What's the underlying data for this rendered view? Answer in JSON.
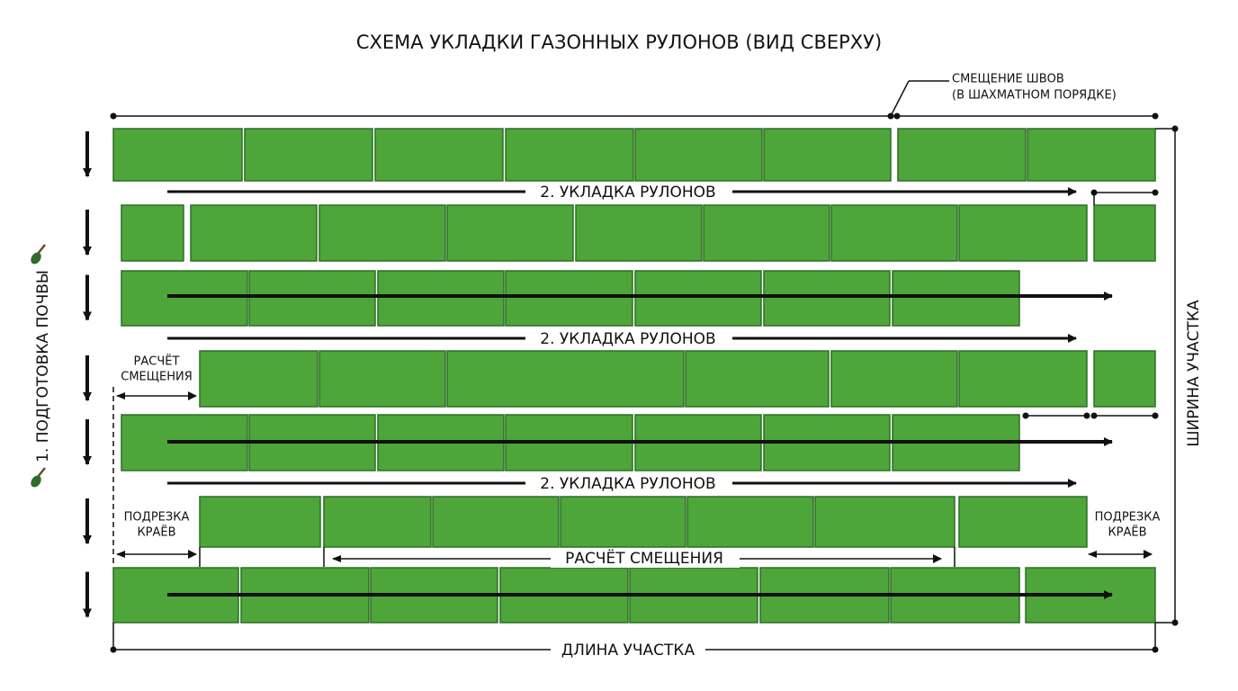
{
  "title": "СХЕМА УКЛАДКИ ГАЗОННЫХ РУЛОНОВ (ВИД СВЕРХУ)",
  "seam_note": [
    "СМЕЩЕНИЕ ШВОВ",
    "(В ШАХМАТНОМ ПОРЯДКЕ)"
  ],
  "laying_labels": [
    "2. УКЛАДКА РУЛОНОВ",
    "2. УКЛАДКА РУЛОНОВ",
    "2. УКЛАДКА РУЛОНОВ"
  ],
  "soil_label": "1. ПОДГОТОВКА ПОЧВЫ",
  "offset_left": [
    "РАСЧЁТ",
    "СМЕЩЕНИЯ"
  ],
  "trim_left": [
    "ПОДРЕЗКА",
    "КРАЁВ"
  ],
  "trim_right": [
    "ПОДРЕЗКА",
    "КРАЁВ"
  ],
  "offset_center": "РАСЧЁТ СМЕЩЕНИЯ",
  "width_label": "ШИРИНА УЧАСТКА",
  "length_label": "ДЛИНА УЧАСТКА"
}
